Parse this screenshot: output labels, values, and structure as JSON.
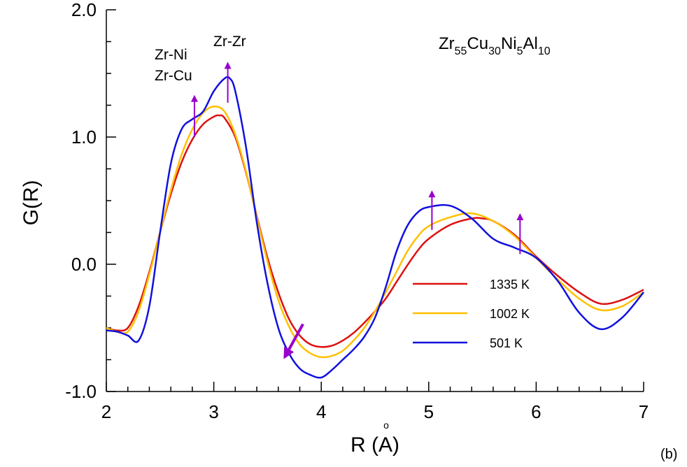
{
  "chart_data": {
    "type": "line",
    "title": "",
    "xlabel": "R (Å)",
    "xlabel_parts": {
      "prefix": "R (",
      "ring": "o",
      "letter": "A",
      "suffix": ")"
    },
    "ylabel": "G(R)",
    "xlim": [
      2,
      7
    ],
    "ylim": [
      -1.0,
      2.0
    ],
    "x_ticks": [
      2,
      3,
      4,
      5,
      6,
      7
    ],
    "x_tick_labels": [
      "2",
      "3",
      "4",
      "5",
      "6",
      "7"
    ],
    "y_ticks": [
      -1.0,
      0.0,
      1.0,
      2.0
    ],
    "y_tick_labels": [
      "-1.0",
      "0.0",
      "1.0",
      "2.0"
    ],
    "grid": false,
    "legend_position": "center-right",
    "composition": {
      "parts": [
        {
          "base": "Zr",
          "sub": "55"
        },
        {
          "base": "Cu",
          "sub": "30"
        },
        {
          "base": "Ni",
          "sub": "5"
        },
        {
          "base": "Al",
          "sub": "10"
        }
      ]
    },
    "annotations": [
      "Zr-Ni",
      "Zr-Cu",
      "Zr-Zr"
    ],
    "panel_label": "(b)",
    "arrows": [
      {
        "from": [
          2.82,
          1.0
        ],
        "to": [
          2.82,
          1.32
        ],
        "color": "#9900CC"
      },
      {
        "from": [
          3.13,
          1.27
        ],
        "to": [
          3.13,
          1.58
        ],
        "color": "#9900CC"
      },
      {
        "from": [
          5.03,
          0.27
        ],
        "to": [
          5.03,
          0.57
        ],
        "color": "#9900CC"
      },
      {
        "from": [
          5.85,
          0.08
        ],
        "to": [
          5.85,
          0.39
        ],
        "color": "#9900CC"
      },
      {
        "from": [
          3.83,
          -0.47
        ],
        "to": [
          3.66,
          -0.73
        ],
        "color": "#9900CC"
      }
    ],
    "series": [
      {
        "name": "1335 K",
        "color": "#DD1111",
        "x": [
          2.0,
          2.1,
          2.2,
          2.3,
          2.4,
          2.5,
          2.6,
          2.7,
          2.8,
          2.9,
          3.0,
          3.05,
          3.1,
          3.2,
          3.3,
          3.4,
          3.5,
          3.6,
          3.7,
          3.8,
          3.9,
          4.0,
          4.1,
          4.2,
          4.3,
          4.4,
          4.5,
          4.6,
          4.7,
          4.8,
          4.9,
          5.0,
          5.2,
          5.4,
          5.5,
          5.6,
          5.8,
          6.0,
          6.2,
          6.4,
          6.6,
          6.8,
          7.0
        ],
        "y": [
          -0.5,
          -0.52,
          -0.5,
          -0.33,
          -0.06,
          0.25,
          0.55,
          0.8,
          0.98,
          1.1,
          1.16,
          1.17,
          1.15,
          1.0,
          0.72,
          0.38,
          0.05,
          -0.22,
          -0.43,
          -0.56,
          -0.63,
          -0.65,
          -0.64,
          -0.6,
          -0.54,
          -0.46,
          -0.37,
          -0.27,
          -0.14,
          -0.01,
          0.11,
          0.2,
          0.31,
          0.36,
          0.36,
          0.34,
          0.23,
          0.06,
          -0.09,
          -0.22,
          -0.31,
          -0.28,
          -0.2
        ]
      },
      {
        "name": "1002 K",
        "color": "#FFC000",
        "x": [
          2.0,
          2.1,
          2.2,
          2.3,
          2.4,
          2.5,
          2.6,
          2.7,
          2.8,
          2.9,
          3.0,
          3.1,
          3.2,
          3.3,
          3.4,
          3.5,
          3.6,
          3.7,
          3.8,
          3.9,
          4.0,
          4.1,
          4.2,
          4.3,
          4.4,
          4.5,
          4.6,
          4.7,
          4.8,
          4.9,
          5.0,
          5.2,
          5.4,
          5.6,
          5.8,
          6.0,
          6.2,
          6.4,
          6.6,
          6.8,
          7.0
        ],
        "y": [
          -0.5,
          -0.53,
          -0.53,
          -0.37,
          -0.08,
          0.25,
          0.58,
          0.86,
          1.06,
          1.19,
          1.24,
          1.2,
          1.02,
          0.73,
          0.37,
          0.02,
          -0.28,
          -0.49,
          -0.63,
          -0.7,
          -0.73,
          -0.72,
          -0.68,
          -0.6,
          -0.5,
          -0.37,
          -0.22,
          -0.06,
          0.1,
          0.22,
          0.3,
          0.37,
          0.4,
          0.34,
          0.22,
          0.05,
          -0.12,
          -0.27,
          -0.36,
          -0.33,
          -0.22
        ]
      },
      {
        "name": "501 K",
        "color": "#1111DD",
        "x": [
          2.0,
          2.1,
          2.2,
          2.3,
          2.4,
          2.5,
          2.6,
          2.7,
          2.8,
          2.9,
          3.0,
          3.1,
          3.15,
          3.2,
          3.3,
          3.4,
          3.5,
          3.6,
          3.7,
          3.8,
          3.9,
          4.0,
          4.1,
          4.2,
          4.3,
          4.4,
          4.5,
          4.6,
          4.7,
          4.8,
          4.9,
          5.0,
          5.2,
          5.4,
          5.6,
          5.8,
          6.0,
          6.2,
          6.4,
          6.6,
          6.8,
          7.0
        ],
        "y": [
          -0.52,
          -0.53,
          -0.56,
          -0.6,
          -0.33,
          0.25,
          0.79,
          1.06,
          1.14,
          1.2,
          1.36,
          1.46,
          1.46,
          1.36,
          0.92,
          0.33,
          -0.15,
          -0.5,
          -0.7,
          -0.82,
          -0.87,
          -0.89,
          -0.83,
          -0.75,
          -0.67,
          -0.57,
          -0.42,
          -0.18,
          0.1,
          0.3,
          0.41,
          0.45,
          0.46,
          0.36,
          0.2,
          0.13,
          0.05,
          -0.13,
          -0.38,
          -0.51,
          -0.42,
          -0.22
        ]
      }
    ]
  }
}
